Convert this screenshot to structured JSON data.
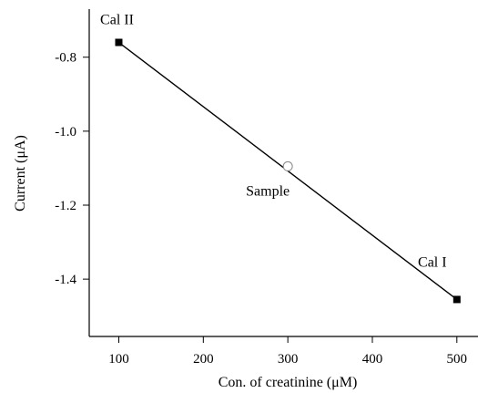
{
  "chart_data": {
    "type": "line",
    "xlabel": "Con. of creatinine (μM)",
    "ylabel": "Current (μA)",
    "xlim": [
      65,
      525
    ],
    "ylim": [
      -1.555,
      -0.67
    ],
    "xticks": [
      100,
      200,
      300,
      400,
      500
    ],
    "xtick_labels": [
      "100",
      "200",
      "300",
      "400",
      "500"
    ],
    "yticks": [
      -0.8,
      -1.0,
      -1.2,
      -1.4
    ],
    "ytick_labels": [
      "-0.8",
      "-1.0",
      "-1.2",
      "-1.4"
    ],
    "grid": false,
    "line": {
      "x": [
        100,
        500
      ],
      "y": [
        -0.76,
        -1.455
      ]
    },
    "points": [
      {
        "label": "Cal II",
        "x": 100,
        "y": -0.76,
        "marker": "filled-square"
      },
      {
        "label": "Sample",
        "x": 300,
        "y": -1.095,
        "marker": "open-circle"
      },
      {
        "label": "Cal I",
        "x": 500,
        "y": -1.455,
        "marker": "filled-square"
      }
    ]
  }
}
